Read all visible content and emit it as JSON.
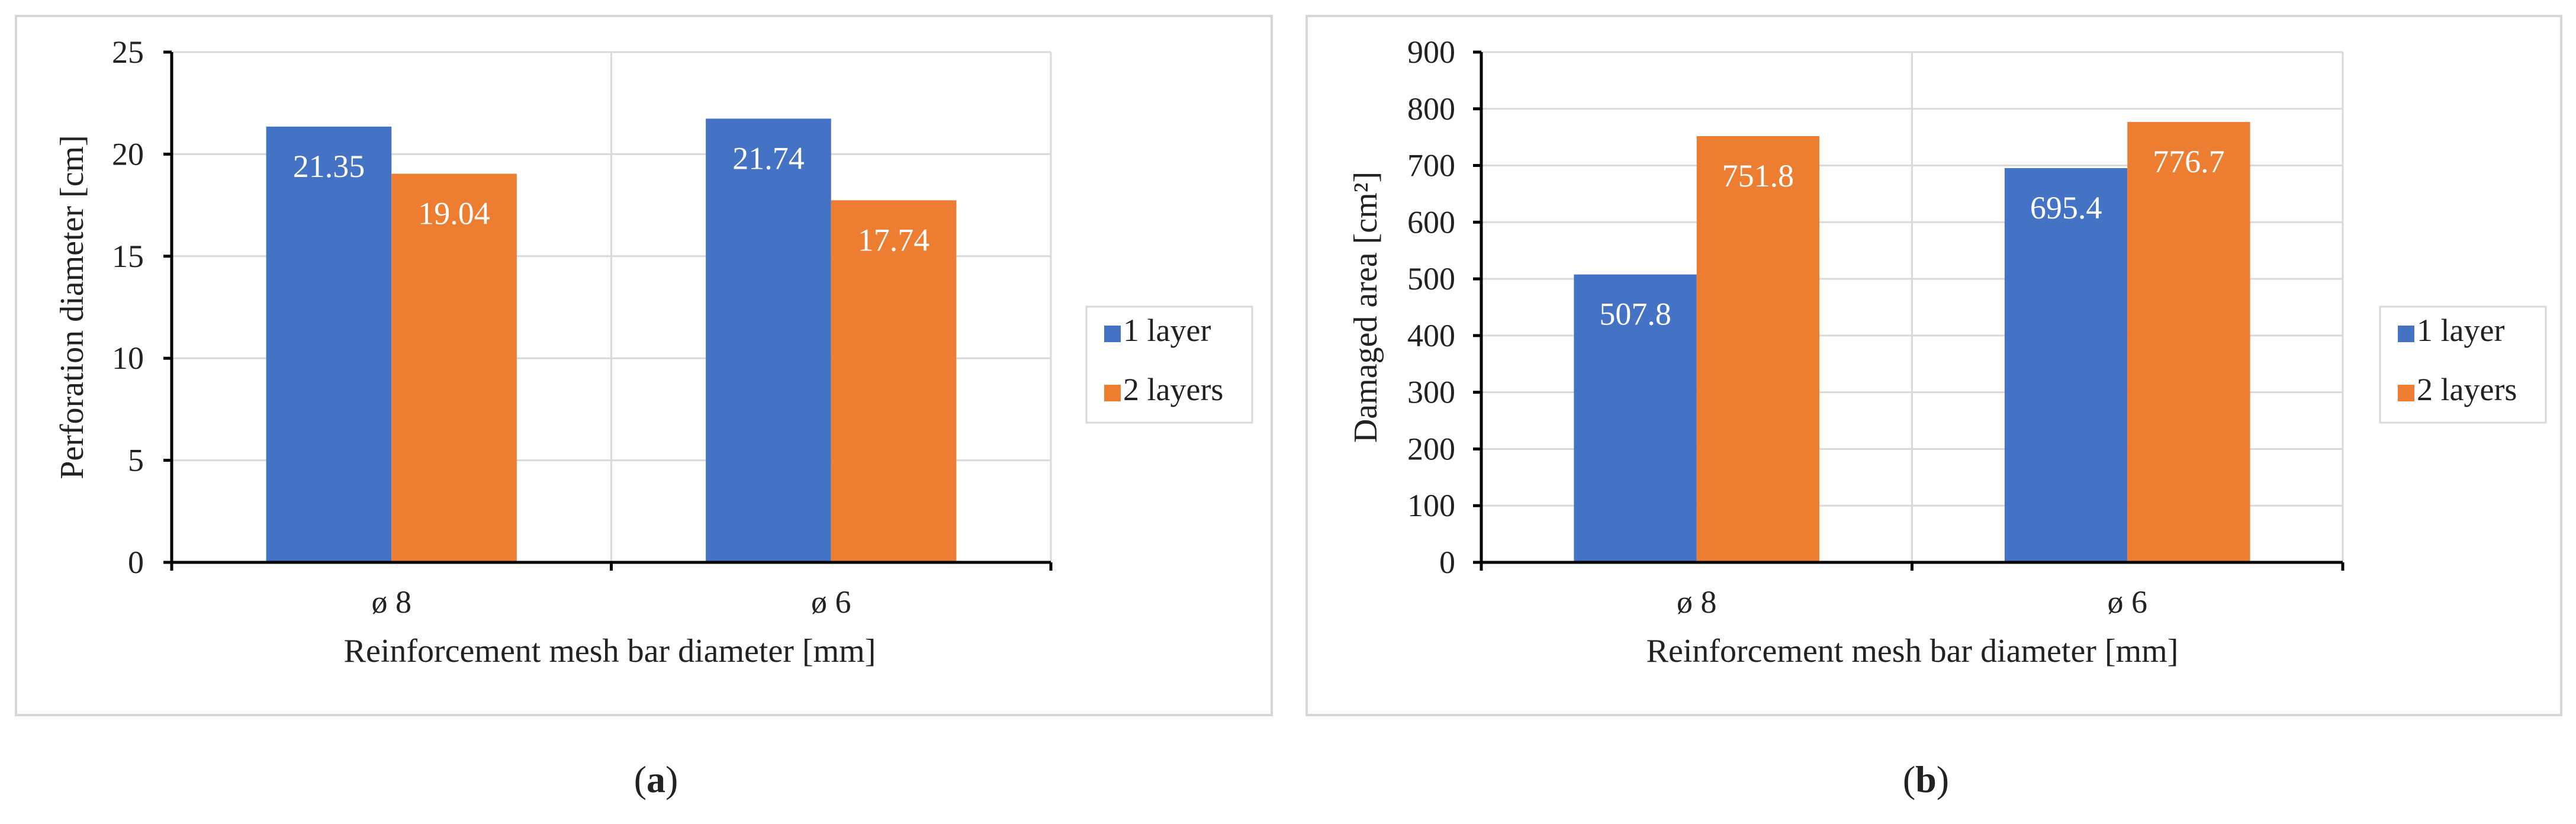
{
  "chart_data": [
    {
      "type": "bar",
      "panel": "a",
      "categories": [
        "ø 8",
        "ø 6"
      ],
      "series": [
        {
          "name": "1 layer",
          "values": [
            21.35,
            21.74
          ],
          "color": "#4472C4"
        },
        {
          "name": "2 layers",
          "values": [
            19.04,
            17.74
          ],
          "color": "#ED7D31"
        }
      ],
      "data_labels": [
        [
          "21.35",
          "21.74"
        ],
        [
          "19.04",
          "17.74"
        ]
      ],
      "xlabel": "Reinforcement mesh bar diameter [mm]",
      "ylabel": "Perforation diameter [cm]",
      "ylim": [
        0,
        25
      ],
      "yticks": [
        0,
        5,
        10,
        15,
        20,
        25
      ],
      "ytick_labels": [
        "0",
        "5",
        "10",
        "15",
        "20",
        "25"
      ],
      "grid": true,
      "legend": "right"
    },
    {
      "type": "bar",
      "panel": "b",
      "categories": [
        "ø 8",
        "ø 6"
      ],
      "series": [
        {
          "name": "1 layer",
          "values": [
            507.8,
            695.4
          ],
          "color": "#4472C4"
        },
        {
          "name": "2 layers",
          "values": [
            751.8,
            776.7
          ],
          "color": "#ED7D31"
        }
      ],
      "data_labels": [
        [
          "507.8",
          "695.4"
        ],
        [
          "751.8",
          "776.7"
        ]
      ],
      "xlabel": "Reinforcement mesh bar diameter [mm]",
      "ylabel": "Damaged area [cm²]",
      "ylim": [
        0,
        900
      ],
      "yticks": [
        0,
        100,
        200,
        300,
        400,
        500,
        600,
        700,
        800,
        900
      ],
      "ytick_labels": [
        "0",
        "100",
        "200",
        "300",
        "400",
        "500",
        "600",
        "700",
        "800",
        "900"
      ],
      "grid": true,
      "legend": "right"
    }
  ],
  "captions": {
    "a": {
      "open": "(",
      "letter": "a",
      "close": ")"
    },
    "b": {
      "open": "(",
      "letter": "b",
      "close": ")"
    }
  }
}
